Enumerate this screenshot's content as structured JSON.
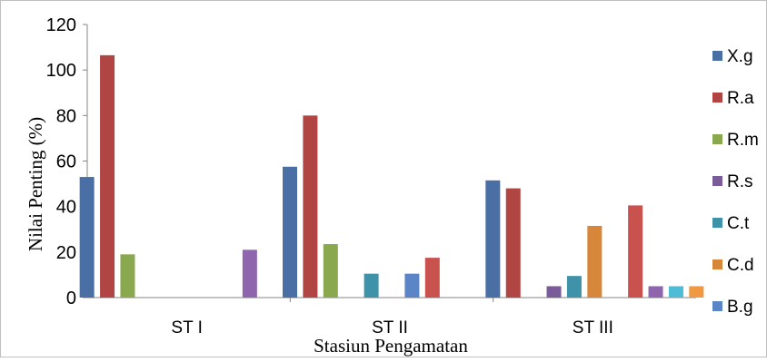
{
  "chart_data": {
    "type": "bar",
    "title": "",
    "xlabel": "Stasiun Pengamatan",
    "ylabel": "Nilai Penting (%)",
    "ylim": [
      0,
      120
    ],
    "yticks": [
      0,
      20,
      40,
      60,
      80,
      100,
      120
    ],
    "categories": [
      "ST I",
      "ST II",
      "ST III"
    ],
    "legend_position": "right",
    "grid": false,
    "series": [
      {
        "name": "X.g",
        "color": "#4a6fa5",
        "values": [
          53,
          57.5,
          51.5
        ]
      },
      {
        "name": "R.a",
        "color": "#b04543",
        "values": [
          106.5,
          80,
          48
        ]
      },
      {
        "name": "R.m",
        "color": "#8aa84e",
        "values": [
          19,
          23.5,
          0
        ]
      },
      {
        "name": "R.s",
        "color": "#7a5c99",
        "values": [
          0,
          0,
          5
        ]
      },
      {
        "name": "C.t",
        "color": "#3f93a8",
        "values": [
          0,
          10.5,
          9.5
        ]
      },
      {
        "name": "C.d",
        "color": "#d7873a",
        "values": [
          0,
          0,
          31.5
        ]
      },
      {
        "name": "B.g",
        "color": "#5b85c5",
        "values": [
          0,
          10.5,
          0
        ]
      },
      {
        "name": "",
        "color": "#c9514e",
        "values": [
          0,
          17.5,
          40.5
        ]
      },
      {
        "name": "",
        "color": "#8f66ad",
        "values": [
          21,
          0,
          5
        ]
      },
      {
        "name": "",
        "color": "#4ebcd5",
        "values": [
          0,
          0,
          5
        ]
      },
      {
        "name": "",
        "color": "#ef9a43",
        "values": [
          0,
          0,
          5
        ]
      }
    ]
  }
}
